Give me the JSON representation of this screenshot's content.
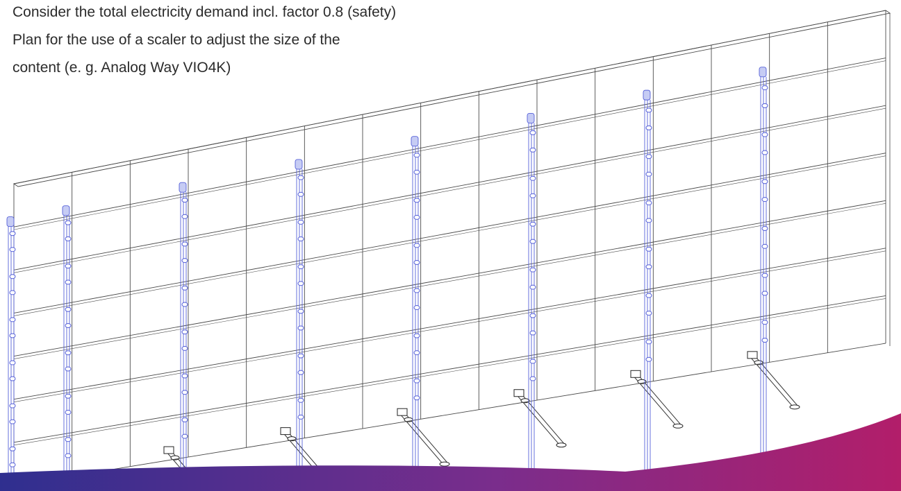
{
  "notes": {
    "line1": "Consider the total electricity demand incl. factor 0.8 (safety)",
    "line2": "Plan for the use of a scaler to adjust the size of the",
    "line3": "content (e. g. Analog Way VIO4K)"
  },
  "colors": {
    "frame_line": "#4a4a4a",
    "truss": "#5560d8",
    "truss_fill": "#c6ccf4",
    "band_start": "#2f2f8f",
    "band_mid": "#7a2d8c",
    "band_end": "#b21e6a"
  },
  "drawing": {
    "panel_columns": 15,
    "panel_rows": 7,
    "truss_count": 8,
    "ground_supports": 6
  }
}
